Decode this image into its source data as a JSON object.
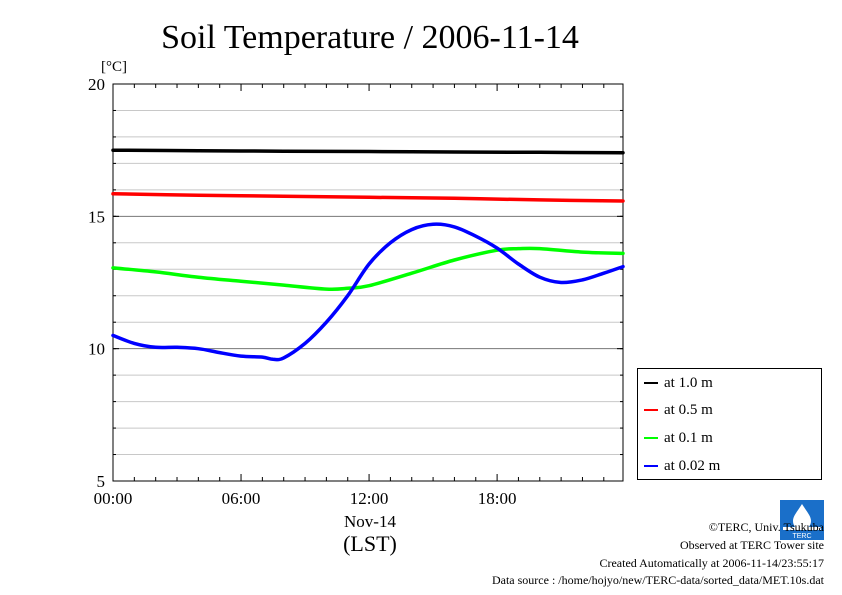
{
  "chart_data": {
    "type": "line",
    "title": "Soil Temperature / 2006-11-14",
    "ylabel": "[°C]",
    "xlabel": "(LST)",
    "date_label": "Nov-14",
    "ylim": [
      5,
      20
    ],
    "xlim": [
      0,
      23.9
    ],
    "yticks": [
      5,
      10,
      15,
      20
    ],
    "xticks": [
      {
        "value": 0,
        "label": "00:00"
      },
      {
        "value": 6,
        "label": "06:00"
      },
      {
        "value": 12,
        "label": "12:00"
      },
      {
        "value": 18,
        "label": "18:00"
      }
    ],
    "grid": true,
    "legend_position": "bottom-right-outside",
    "series": [
      {
        "name": "at 1.0 m",
        "color": "#000000",
        "x": [
          0,
          4,
          8,
          12,
          16,
          20,
          23.9
        ],
        "y": [
          17.5,
          17.48,
          17.46,
          17.45,
          17.43,
          17.42,
          17.4
        ]
      },
      {
        "name": "at 0.5 m",
        "color": "#ff0000",
        "x": [
          0,
          4,
          8,
          12,
          16,
          20,
          23.9
        ],
        "y": [
          15.85,
          15.8,
          15.76,
          15.72,
          15.68,
          15.62,
          15.58
        ]
      },
      {
        "name": "at 0.1 m",
        "color": "#00ff00",
        "x": [
          0,
          2,
          4,
          6,
          8,
          10,
          11,
          12,
          14,
          16,
          18,
          19,
          20,
          22,
          23.9
        ],
        "y": [
          13.05,
          12.9,
          12.7,
          12.55,
          12.4,
          12.25,
          12.28,
          12.38,
          12.85,
          13.35,
          13.72,
          13.78,
          13.78,
          13.65,
          13.6
        ]
      },
      {
        "name": "at 0.02 m",
        "color": "#0000ff",
        "x": [
          0,
          1,
          2,
          3,
          4,
          5,
          6,
          7,
          7.5,
          8,
          9,
          10,
          11,
          12,
          13,
          14,
          15,
          16,
          17,
          18,
          19,
          20,
          21,
          22,
          23,
          23.9
        ],
        "y": [
          10.5,
          10.2,
          10.05,
          10.05,
          10.0,
          9.85,
          9.72,
          9.68,
          9.6,
          9.65,
          10.2,
          11.0,
          12.0,
          13.2,
          14.0,
          14.5,
          14.7,
          14.6,
          14.25,
          13.8,
          13.2,
          12.7,
          12.5,
          12.6,
          12.85,
          13.1
        ]
      }
    ]
  },
  "footer": {
    "copyright": "©TERC, Univ. Tsukuba",
    "site": "Observed at TERC Tower site",
    "created": "Created Automatically at 2006-11-14/23:55:17",
    "source": "Data source : /home/hojyo/new/TERC-data/sorted_data/MET.10s.dat",
    "logo_text": "TERC"
  }
}
